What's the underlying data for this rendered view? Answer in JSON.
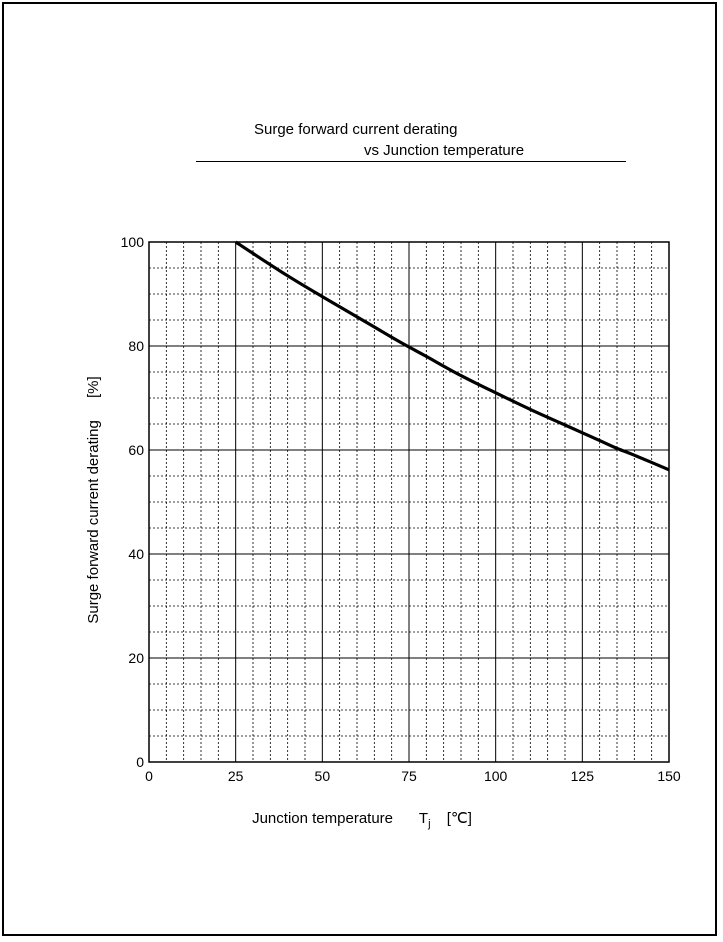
{
  "chart_data": {
    "type": "line",
    "title_line1": "Surge forward current derating",
    "title_line2": "vs Junction temperature",
    "xlabel": "Junction temperature",
    "xlabel_symbol": "T",
    "xlabel_subscript": "j",
    "xlabel_unit": "[℃]",
    "ylabel": "Surge forward current derating",
    "ylabel_unit": "[%]",
    "xlim": [
      0,
      150
    ],
    "ylim": [
      0,
      100
    ],
    "x_ticks": [
      0,
      25,
      50,
      75,
      100,
      125,
      150
    ],
    "y_ticks": [
      0,
      20,
      40,
      60,
      80,
      100
    ],
    "x_minor_step": 5,
    "y_minor_step": 5,
    "grid": true,
    "series": [
      {
        "x": [
          25,
          30,
          40,
          50,
          60,
          70,
          75,
          80,
          90,
          100,
          110,
          120,
          130,
          135,
          140,
          150
        ],
        "y": [
          100,
          97.8,
          93.5,
          89.5,
          85.6,
          81.7,
          79.8,
          78.0,
          74.3,
          71.0,
          67.8,
          64.8,
          61.8,
          60.3,
          59.0,
          56.2
        ]
      }
    ]
  }
}
